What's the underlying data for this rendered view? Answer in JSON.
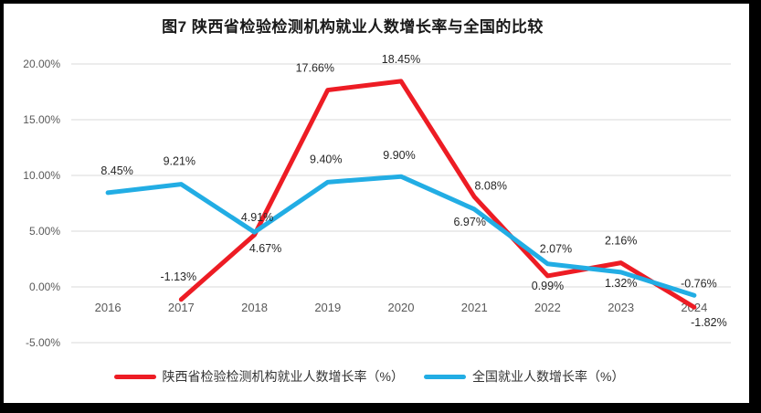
{
  "figure": {
    "title": "图7 陕西省检验检测机构就业人数增长率与全国的比较"
  },
  "chart_data": {
    "type": "line",
    "title": "图7 陕西省检验检测机构就业人数增长率与全国的比较",
    "categories": [
      "2016",
      "2017",
      "2018",
      "2019",
      "2020",
      "2021",
      "2022",
      "2023",
      "2024"
    ],
    "y_axis": {
      "tick_values": [
        20,
        15,
        10,
        5,
        0,
        -5
      ],
      "tick_labels": [
        "20.00%",
        "15.00%",
        "10.00%",
        "5.00%",
        "0.00%",
        "-5.00%"
      ],
      "ylim": [
        -5,
        20
      ]
    },
    "grid": true,
    "gridline_color": "#d9d9d9",
    "legend_position": "bottom",
    "series": [
      {
        "name": "陕西省检验检测机构就业人数增长率（%）",
        "color": "#ed1c24",
        "values": [
          null,
          -1.13,
          4.67,
          17.66,
          18.45,
          8.08,
          0.99,
          2.16,
          -1.82
        ],
        "labels": [
          null,
          "-1.13%",
          "4.67%",
          "17.66%",
          "18.45%",
          "8.08%",
          "0.99%",
          "2.16%",
          "-1.82%"
        ],
        "label_offsets": [
          [
            0,
            0
          ],
          [
            -3,
            -21
          ],
          [
            12,
            19
          ],
          [
            -14,
            -20
          ],
          [
            0,
            -20
          ],
          [
            18,
            -8
          ],
          [
            0,
            15
          ],
          [
            0,
            -20
          ],
          [
            16,
            21
          ]
        ]
      },
      {
        "name": "全国就业人数增长率（%）",
        "color": "#22ade4",
        "values": [
          8.45,
          9.21,
          4.91,
          9.4,
          9.9,
          6.97,
          2.07,
          1.32,
          -0.76
        ],
        "labels": [
          "8.45%",
          "9.21%",
          "4.91%",
          "9.40%",
          "9.90%",
          "6.97%",
          "2.07%",
          "1.32%",
          "-0.76%"
        ],
        "label_offsets": [
          [
            10,
            -20
          ],
          [
            -2,
            -21
          ],
          [
            3,
            -12
          ],
          [
            -2,
            -21
          ],
          [
            -2,
            -19
          ],
          [
            -5,
            18
          ],
          [
            9,
            -12
          ],
          [
            0,
            16
          ],
          [
            5,
            -9
          ]
        ]
      }
    ]
  }
}
